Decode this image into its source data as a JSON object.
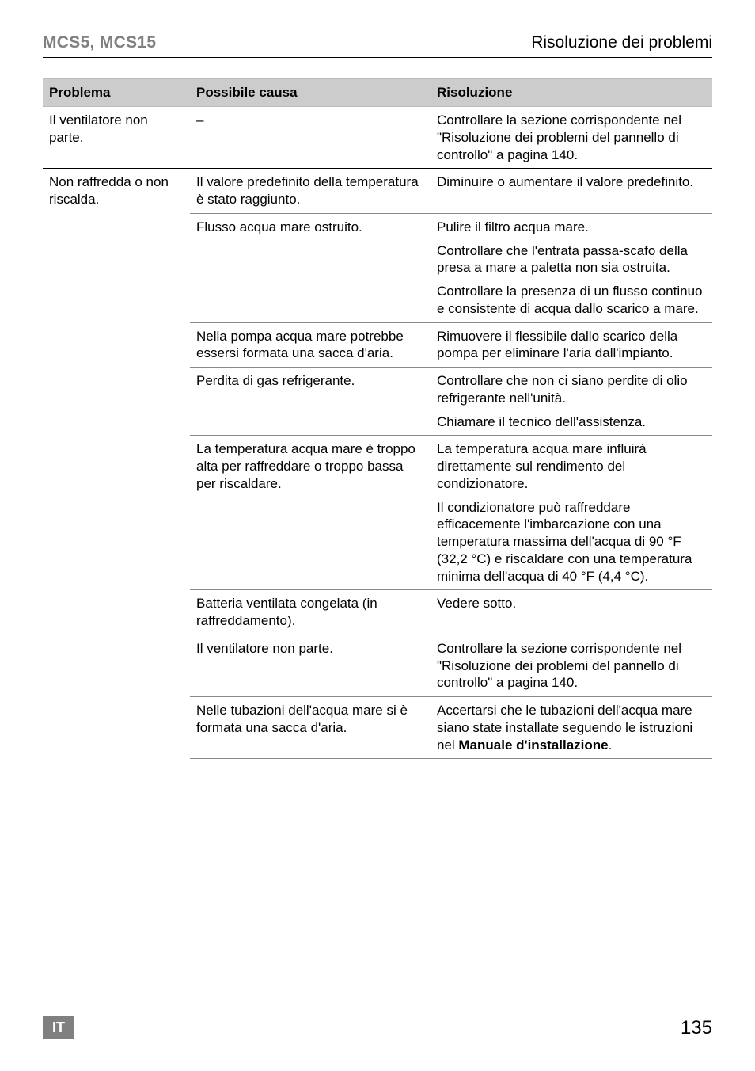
{
  "header": {
    "left": "MCS5, MCS15",
    "right": "Risoluzione dei problemi"
  },
  "columns": {
    "problema": "Problema",
    "causa": "Possibile causa",
    "risoluzione": "Risoluzione"
  },
  "rows": [
    {
      "problema": "Il ventilatore non parte.",
      "items": [
        {
          "causa": "–",
          "res": [
            "Controllare la sezione corrispondente nel \"Risoluzione dei problemi del pannello di controllo\" a pagina 140."
          ]
        }
      ]
    },
    {
      "problema": "Non raffredda o non riscalda.",
      "items": [
        {
          "causa": "Il valore predefinito della temperatura è stato raggiunto.",
          "res": [
            "Diminuire o aumentare il valore predefinito."
          ]
        },
        {
          "causa": "Flusso acqua mare ostruito.",
          "res": [
            "Pulire il filtro acqua mare.",
            "Controllare che l'entrata passa-scafo della presa a mare a paletta non sia ostruita.",
            "Controllare la presenza di un flusso continuo e consistente di acqua dallo scarico a mare."
          ]
        },
        {
          "causa": "Nella pompa acqua mare potrebbe essersi formata una sacca d'aria.",
          "res": [
            "Rimuovere il flessibile dallo scarico della pompa per eliminare l'aria dall'impianto."
          ]
        },
        {
          "causa": "Perdita di gas refrigerante.",
          "res": [
            "Controllare che non ci siano perdite di olio refrigerante nell'unità.",
            "Chiamare il tecnico dell'assistenza."
          ]
        },
        {
          "causa": "La temperatura acqua mare è troppo alta per raffreddare o troppo bassa per riscaldare.",
          "res": [
            "La temperatura acqua mare influirà direttamente sul rendimento del condizionatore.",
            "Il condizionatore può raffreddare efficacemente l'imbarcazione con una temperatura massima dell'acqua di 90 °F (32,2 °C) e riscaldare con una temperatura minima dell'acqua di 40 °F (4,4 °C)."
          ]
        },
        {
          "causa": "Batteria ventilata congelata (in raffreddamento).",
          "res": [
            "Vedere sotto."
          ]
        },
        {
          "causa": "Il ventilatore non parte.",
          "res": [
            "Controllare la sezione corrispondente nel \"Risoluzione dei problemi del pannello di controllo\" a pagina 140."
          ]
        },
        {
          "causa": "Nelle tubazioni dell'acqua mare si è formata una sacca d'aria.",
          "res_html": "Accertarsi che le tubazioni dell'acqua mare siano state installate seguendo le istruzioni nel <strong class='b'>Manuale d'installazione</strong>."
        }
      ]
    }
  ],
  "footer": {
    "badge": "IT",
    "page": "135"
  }
}
